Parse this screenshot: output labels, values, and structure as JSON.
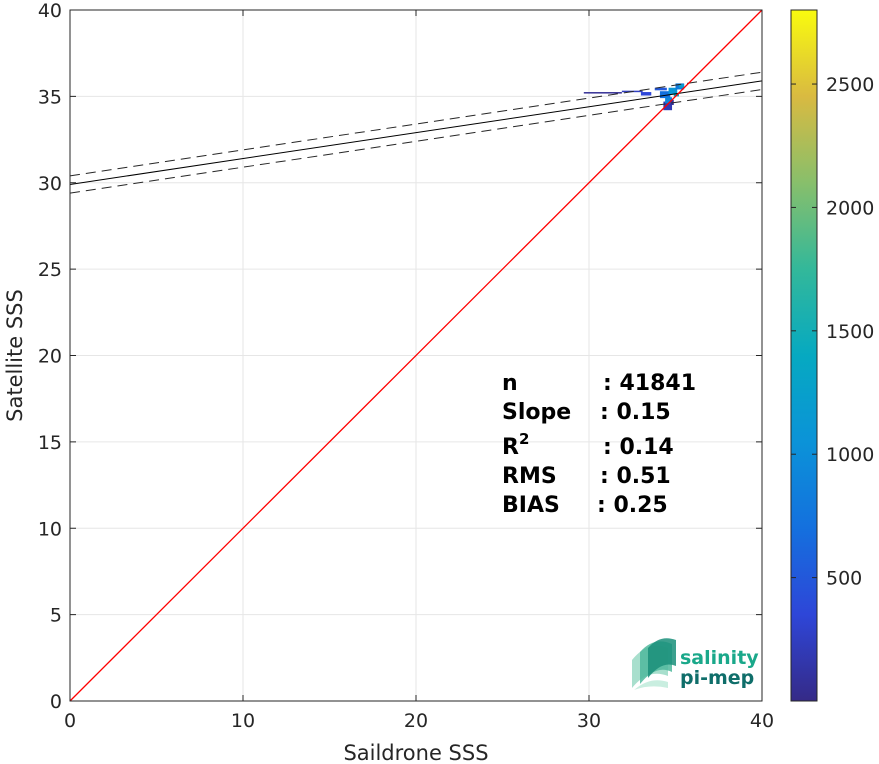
{
  "chart_data": {
    "type": "scatter",
    "xlabel": "Saildrone SSS",
    "ylabel": "Satellite SSS",
    "xlim": [
      0,
      40
    ],
    "ylim": [
      0,
      40
    ],
    "x_ticks": [
      "0",
      "10",
      "20",
      "30",
      "40"
    ],
    "y_ticks": [
      "0",
      "5",
      "10",
      "15",
      "20",
      "25",
      "30",
      "35",
      "40"
    ],
    "grid": true,
    "identity_line": {
      "x": [
        0,
        40
      ],
      "y": [
        0,
        40
      ],
      "color": "#ff0000"
    },
    "fit_line": {
      "slope": 0.15,
      "intercept": 29.9,
      "color": "#000000"
    },
    "confidence_lines": [
      {
        "slope": 0.15,
        "intercept": 30.4
      },
      {
        "slope": 0.15,
        "intercept": 29.4
      }
    ],
    "density_cells": [
      {
        "x": 29.7,
        "y": 35.2,
        "w": 2.2,
        "h": 0.05,
        "density": 60
      },
      {
        "x": 31.9,
        "y": 35.25,
        "w": 1.2,
        "h": 0.08,
        "density": 250
      },
      {
        "x": 33.0,
        "y": 35.05,
        "w": 0.6,
        "h": 0.2,
        "density": 350
      },
      {
        "x": 33.8,
        "y": 35.35,
        "w": 0.7,
        "h": 0.15,
        "density": 500
      },
      {
        "x": 34.1,
        "y": 34.9,
        "w": 0.6,
        "h": 0.4,
        "density": 700
      },
      {
        "x": 34.6,
        "y": 35.1,
        "w": 0.5,
        "h": 0.4,
        "density": 1100
      },
      {
        "x": 35.0,
        "y": 35.4,
        "w": 0.5,
        "h": 0.35,
        "density": 800
      },
      {
        "x": 34.3,
        "y": 34.2,
        "w": 0.5,
        "h": 0.5,
        "density": 200
      },
      {
        "x": 34.4,
        "y": 34.6,
        "w": 0.4,
        "h": 0.35,
        "density": 900
      },
      {
        "x": 34.9,
        "y": 35.0,
        "w": 0.3,
        "h": 0.2,
        "density": 1400
      },
      {
        "x": 35.2,
        "y": 35.5,
        "w": 0.3,
        "h": 0.2,
        "density": 1200
      },
      {
        "x": 34.7,
        "y": 34.5,
        "w": 0.2,
        "h": 0.3,
        "density": 100
      }
    ],
    "colorbar": {
      "range": [
        0,
        2800
      ],
      "ticks": [
        "500",
        "1000",
        "1500",
        "2000",
        "2500"
      ],
      "tick_values": [
        500,
        1000,
        1500,
        2000,
        2500
      ],
      "colormap": "parula"
    },
    "stats": [
      {
        "label": "n",
        "value": ": 41841"
      },
      {
        "label": "Slope",
        "value": ": 0.15"
      },
      {
        "label": "R",
        "label_sup": "2",
        "value": ": 0.14"
      },
      {
        "label": "RMS",
        "value": ": 0.51"
      },
      {
        "label": "BIAS",
        "value": ": 0.25"
      }
    ]
  },
  "logo": {
    "line1": "salinity",
    "line2": "pi-mep",
    "color_primary": "#1aa88a",
    "color_secondary": "#0f6e6a"
  }
}
